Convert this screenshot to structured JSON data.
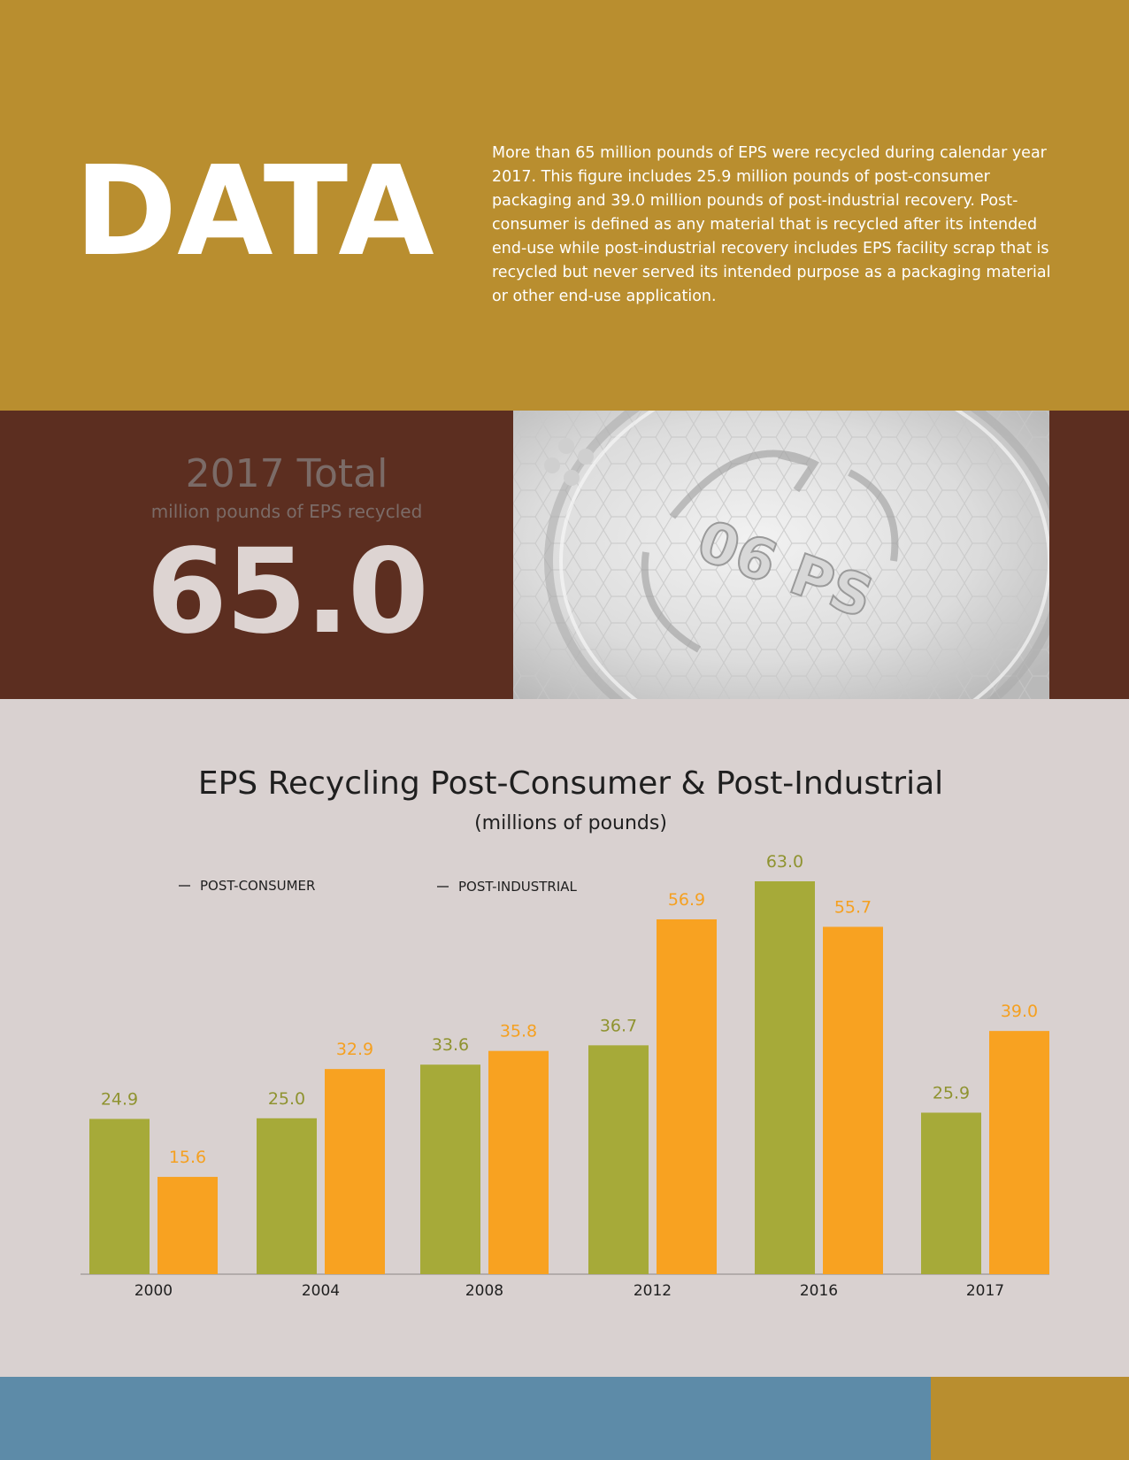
{
  "header": {
    "title": "DATA",
    "body": "More than 65 million pounds of EPS were recycled during calendar year 2017. This figure includes 25.9 million pounds of post-consumer packaging and 39.0 million pounds of post-industrial recovery. Post-consumer is defined as any material that is recycled after its intended end-use while post-industrial recovery includes EPS facility scrap that is recycled but never served its intended purpose as a packaging material or other end-use application."
  },
  "summary": {
    "label": "2017 Total",
    "sublabel": "million pounds of EPS recycled",
    "value": "65.0"
  },
  "photo": {
    "stamp_text": "06 PS"
  },
  "colors": {
    "header_bg": "#b98e2f",
    "band_bg": "#5c2e20",
    "chart_bg": "#d9d1d0",
    "post_consumer": "#a6aa39",
    "post_industrial": "#f8a221",
    "footer_blue": "#5d8ba8"
  },
  "chart_data": {
    "type": "bar",
    "title": "EPS Recycling Post-Consumer & Post-Industrial",
    "subtitle": "(millions of pounds)",
    "categories": [
      "2000",
      "2004",
      "2008",
      "2012",
      "2016",
      "2017"
    ],
    "series": [
      {
        "name": "POST-CONSUMER",
        "values": [
          24.9,
          25.0,
          33.6,
          36.7,
          63.0,
          25.9
        ],
        "color": "#a6aa39"
      },
      {
        "name": "POST-INDUSTRIAL",
        "values": [
          15.6,
          32.9,
          35.8,
          56.9,
          55.7,
          39.0
        ],
        "color": "#f8a221"
      }
    ],
    "value_labels": [
      [
        "24.9",
        "25.0",
        "33.6",
        "36.7",
        "63.0",
        "25.9"
      ],
      [
        "15.6",
        "32.9",
        "35.8",
        "56.9",
        "55.7",
        "39.0"
      ]
    ],
    "ylim": [
      0,
      63
    ],
    "grid": false,
    "legend_placement": "top-left"
  }
}
